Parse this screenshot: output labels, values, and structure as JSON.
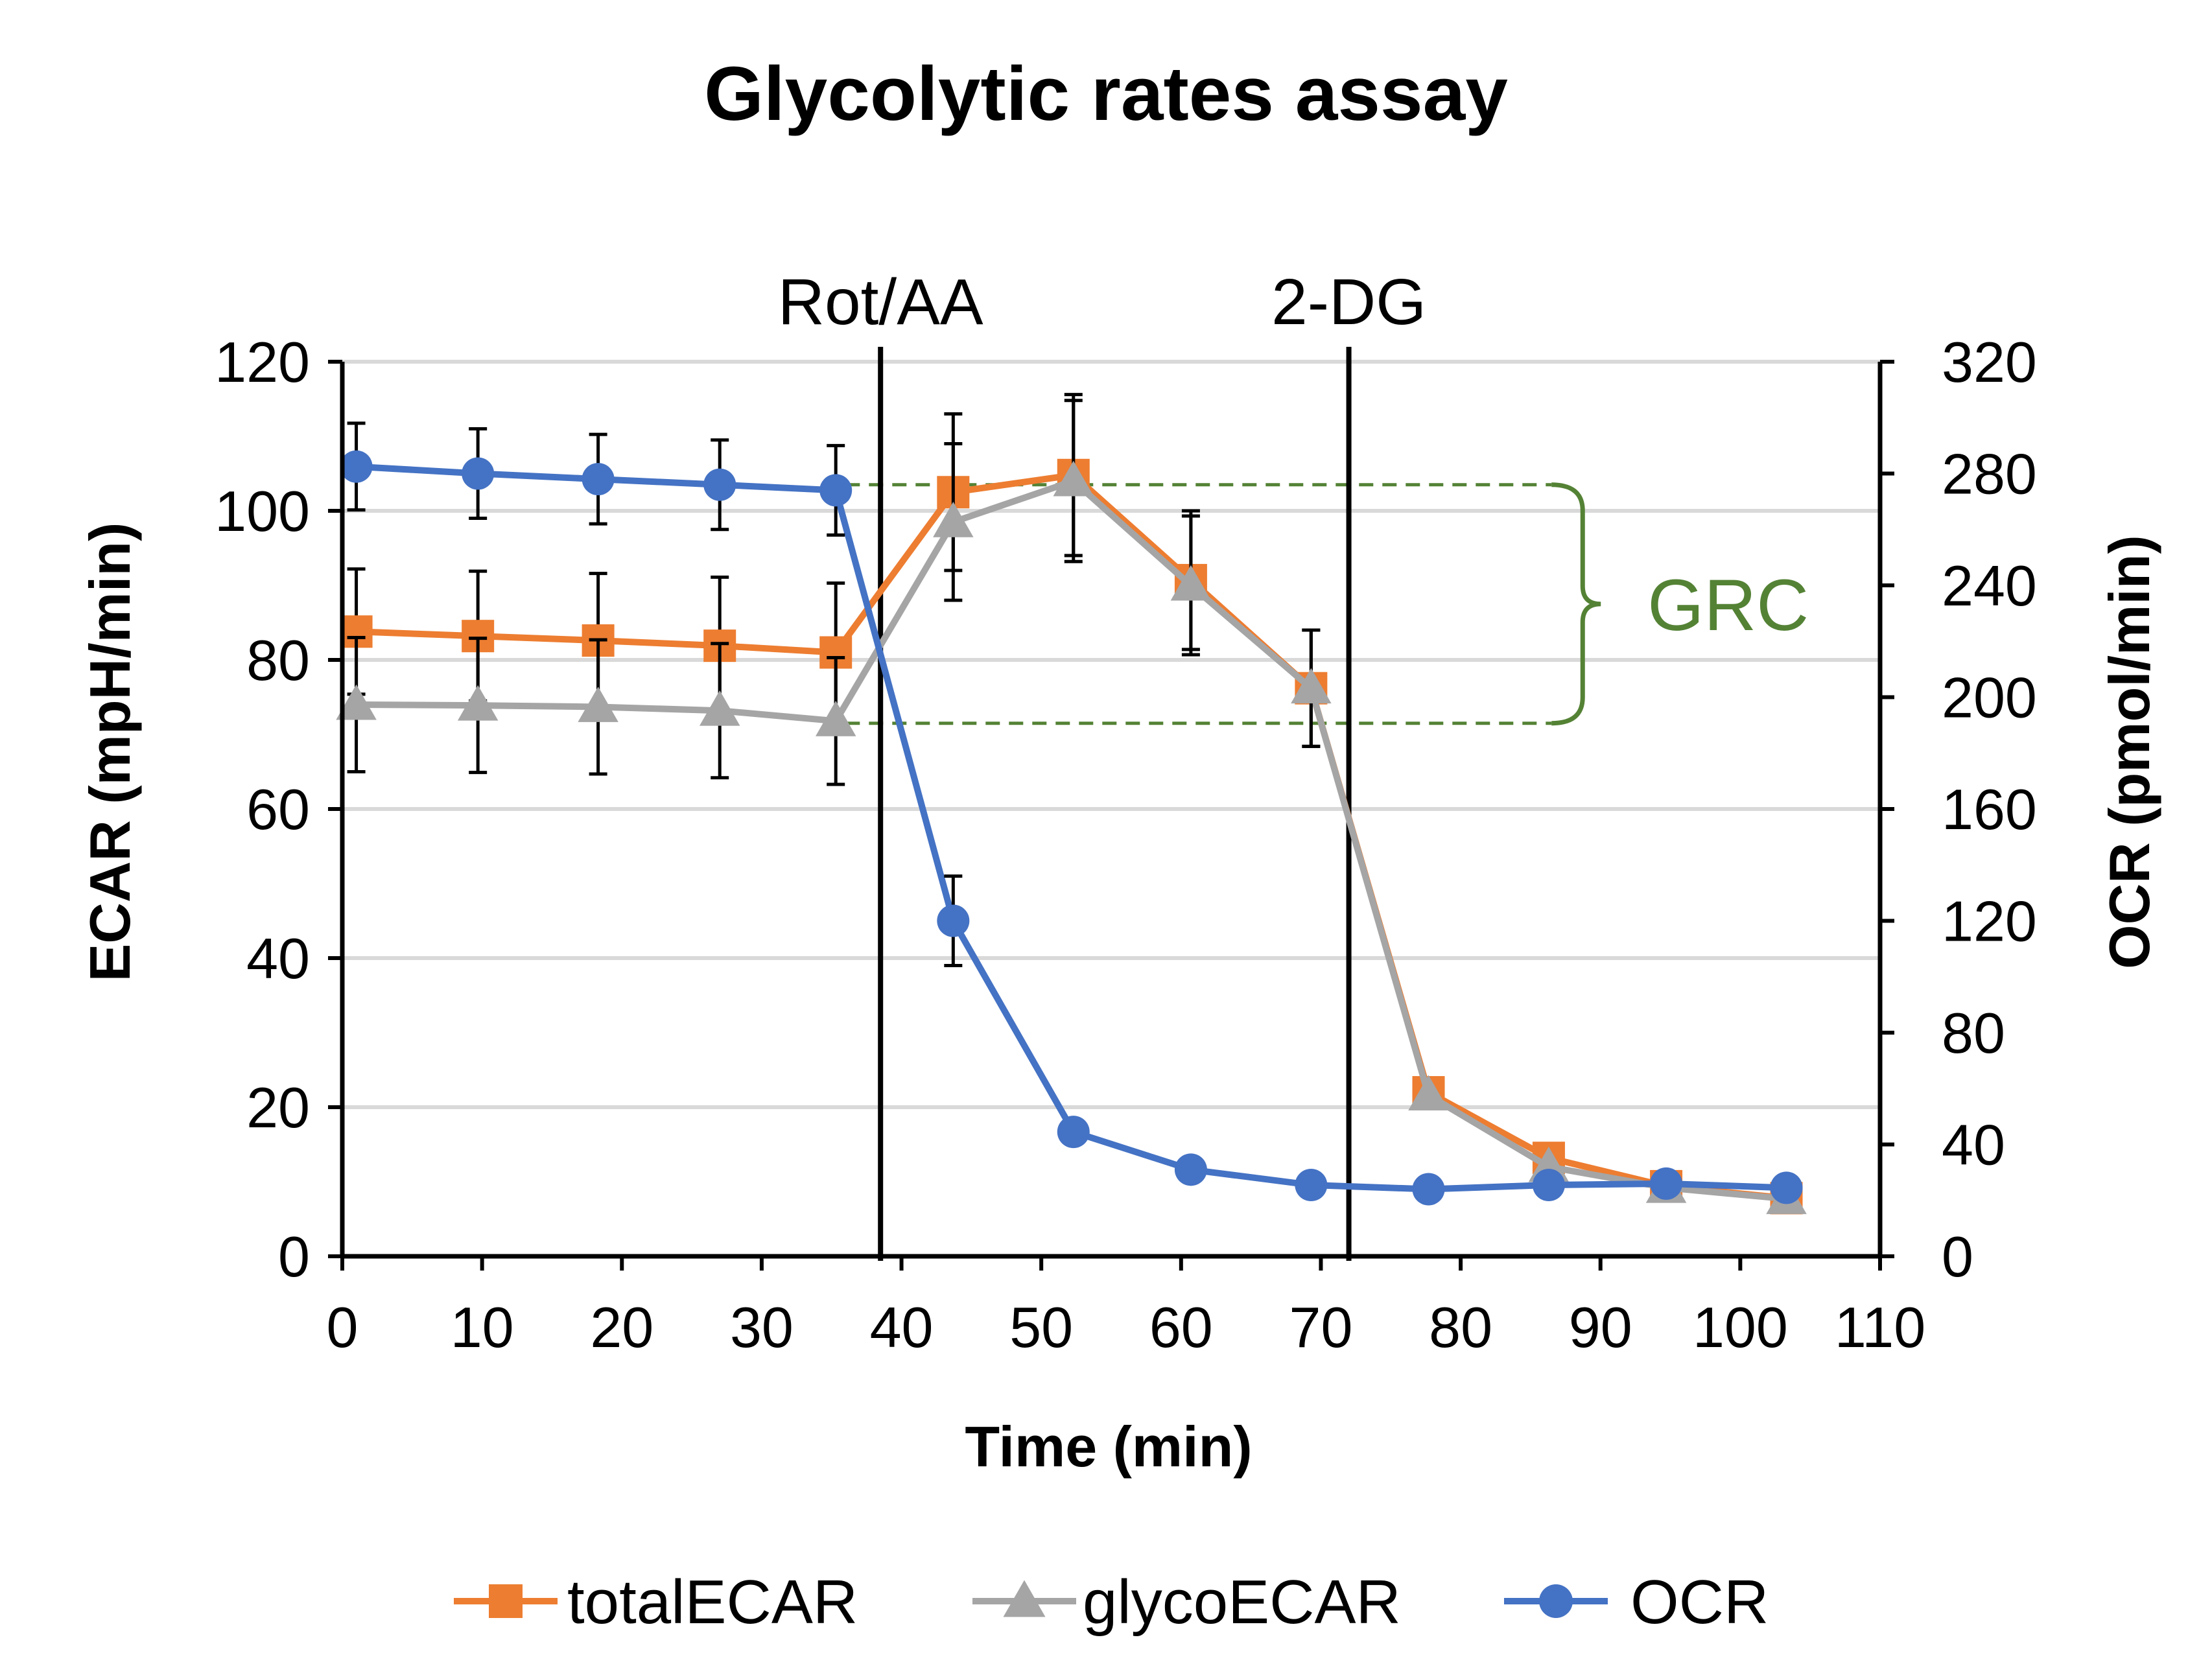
{
  "chart_data": {
    "type": "line",
    "title": "Glycolytic rates assay",
    "xlabel": "Time (min)",
    "ylabel_left": "ECAR (mpH/min)",
    "ylabel_right": "OCR (pmol/min)",
    "xlim": [
      0,
      110
    ],
    "xticks": [
      0,
      10,
      20,
      30,
      40,
      50,
      60,
      70,
      80,
      90,
      100,
      110
    ],
    "ylim_left": [
      0,
      120
    ],
    "yticks_left": [
      0,
      20,
      40,
      60,
      80,
      100,
      120
    ],
    "ylim_right": [
      0,
      320
    ],
    "yticks_right": [
      0,
      40,
      80,
      120,
      160,
      200,
      240,
      280,
      320
    ],
    "grid": "horizontal",
    "legend_position": "bottom",
    "injections": [
      {
        "label": "Rot/AA",
        "x": 38.5
      },
      {
        "label": "2-DG",
        "x": 72
      }
    ],
    "annotation": {
      "label": "GRC",
      "color": "#548235",
      "y_low": 71.5,
      "y_high": 103.5,
      "x_start": 36,
      "x_end": 86.5
    },
    "series": [
      {
        "name": "totalECAR",
        "axis": "left",
        "color": "#ED7D31",
        "marker": "square",
        "x": [
          1,
          9.7,
          18.3,
          27,
          35.3,
          43.7,
          52.3,
          60.7,
          69.3,
          77.7,
          86.3,
          94.7,
          103.3
        ],
        "values": [
          83.8,
          83.2,
          82.6,
          81.9,
          81.0,
          102.5,
          104.8,
          90.7,
          76.2,
          22.0,
          13.2,
          9.4,
          7.8
        ],
        "errors": [
          8.4,
          8.7,
          9.0,
          9.2,
          9.3,
          10.5,
          10.8,
          9.3,
          7.8,
          null,
          null,
          null,
          null
        ]
      },
      {
        "name": "glycoECAR",
        "axis": "left",
        "color": "#A5A5A5",
        "marker": "triangle",
        "x": [
          1,
          9.7,
          18.3,
          27,
          35.3,
          43.7,
          52.3,
          60.7,
          69.3,
          77.7,
          86.3,
          94.7,
          103.3
        ],
        "values": [
          74.0,
          73.9,
          73.7,
          73.2,
          71.8,
          98.5,
          104.0,
          90.0,
          76.2,
          21.6,
          12.0,
          9.2,
          7.7
        ],
        "errors": [
          9.0,
          9.0,
          9.0,
          9.0,
          8.5,
          10.5,
          10.8,
          9.3,
          7.8,
          null,
          null,
          null,
          null
        ]
      },
      {
        "name": "OCR",
        "axis": "right",
        "color": "#4472C4",
        "marker": "circle",
        "x": [
          1,
          9.7,
          18.3,
          27,
          35.3,
          43.7,
          52.3,
          60.7,
          69.3,
          77.7,
          86.3,
          94.7,
          103.3
        ],
        "values": [
          282.5,
          280.0,
          278.0,
          276.0,
          274.0,
          120.0,
          44.5,
          31.0,
          25.5,
          24.0,
          25.5,
          26.0,
          24.5
        ],
        "errors": [
          15.5,
          16.0,
          16.0,
          16.0,
          16.0,
          16.0,
          null,
          null,
          null,
          null,
          null,
          null,
          null
        ]
      }
    ]
  }
}
